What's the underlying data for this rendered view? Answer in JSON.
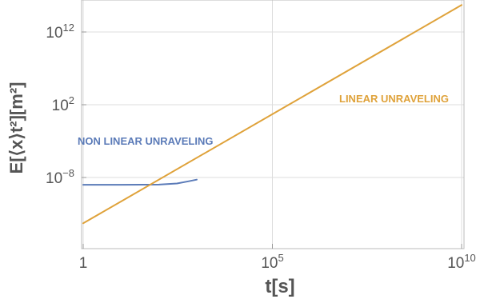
{
  "chart_data": {
    "type": "line",
    "x_scale": "log",
    "y_scale": "log",
    "xlim": [
      1,
      10000000000
    ],
    "ylim": [
      1e-18,
      1000000000000000.0
    ],
    "grid": true,
    "xlabel": "t[s]",
    "ylabel": "E[⟨x⟩t²][m²]",
    "x_ticks": [
      {
        "value": 1,
        "base": "1",
        "exp": ""
      },
      {
        "value": 100000,
        "base": "10",
        "exp": "5"
      },
      {
        "value": 10000000000,
        "base": "10",
        "exp": "10"
      }
    ],
    "y_ticks": [
      {
        "value": 1e-08,
        "base": "10",
        "exp": "−8"
      },
      {
        "value": 100,
        "base": "10",
        "exp": "2"
      },
      {
        "value": 1000000000000.0,
        "base": "10",
        "exp": "12"
      }
    ],
    "series": [
      {
        "name": "NON LINEAR UNRAVELING",
        "color": "#5b7bb8",
        "x": [
          1,
          10,
          100,
          300,
          600,
          1000
        ],
        "y": [
          1e-09,
          1e-09,
          1.05e-09,
          1.5e-09,
          3e-09,
          5e-09
        ]
      },
      {
        "name": "LINEAR UNRAVELING",
        "color": "#dfa23a",
        "x": [
          1,
          10000000000
        ],
        "y": [
          5e-15,
          5000000000000000.0
        ]
      }
    ]
  }
}
